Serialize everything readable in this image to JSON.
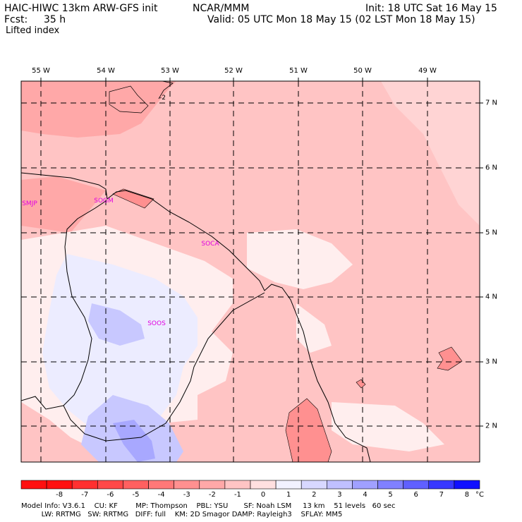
{
  "header": {
    "model_title": "HAIC-HIWC 13km ARW-GFS init",
    "org": "NCAR/MMM",
    "init": "Init: 18 UTC Sat 16 May 15",
    "fcst_label": "Fcst:",
    "fcst_value": "35 h",
    "valid": "Valid: 05 UTC Mon 18 May 15 (02 LST Mon 18 May 15)",
    "field": "Lifted index"
  },
  "map": {
    "lon_labels": [
      "55 W",
      "54 W",
      "53 W",
      "52 W",
      "51 W",
      "50 W",
      "49 W"
    ],
    "lat_labels": [
      "7 N",
      "6 N",
      "5 N",
      "4 N",
      "3 N",
      "2 N"
    ],
    "contour_label": "-2",
    "stations": [
      {
        "id": "SMJP"
      },
      {
        "id": "SOGM"
      },
      {
        "id": "SOCA"
      },
      {
        "id": "SOOS"
      }
    ]
  },
  "colorbar": {
    "labels": [
      "-8",
      "-7",
      "-6",
      "-5",
      "-4",
      "-3",
      "-2",
      "-1",
      "0",
      "1",
      "2",
      "3",
      "4",
      "5",
      "6",
      "7",
      "8"
    ],
    "unit": "°C",
    "colors": [
      "#ff1010",
      "#ff3030",
      "#ff4848",
      "#ff6060",
      "#ff7878",
      "#ff9090",
      "#ffa8a8",
      "#ffc4c4",
      "#ffe0e0",
      "#f2f2ff",
      "#d8d8ff",
      "#c0c0ff",
      "#a0a0ff",
      "#8080ff",
      "#6060ff",
      "#3838ff",
      "#1010ff"
    ]
  },
  "footer": {
    "line1": "Model Info: V3.6.1    CU: KF        MP: Thompson    PBL: YSU       SF: Noah LSM     13 km    51 levels   60 sec",
    "line2": "         LW: RRTMG   SW: RRTMG   DIFF: full    KM: 2D Smagor DAMP: Rayleigh3    SFLAY: MM5"
  }
}
